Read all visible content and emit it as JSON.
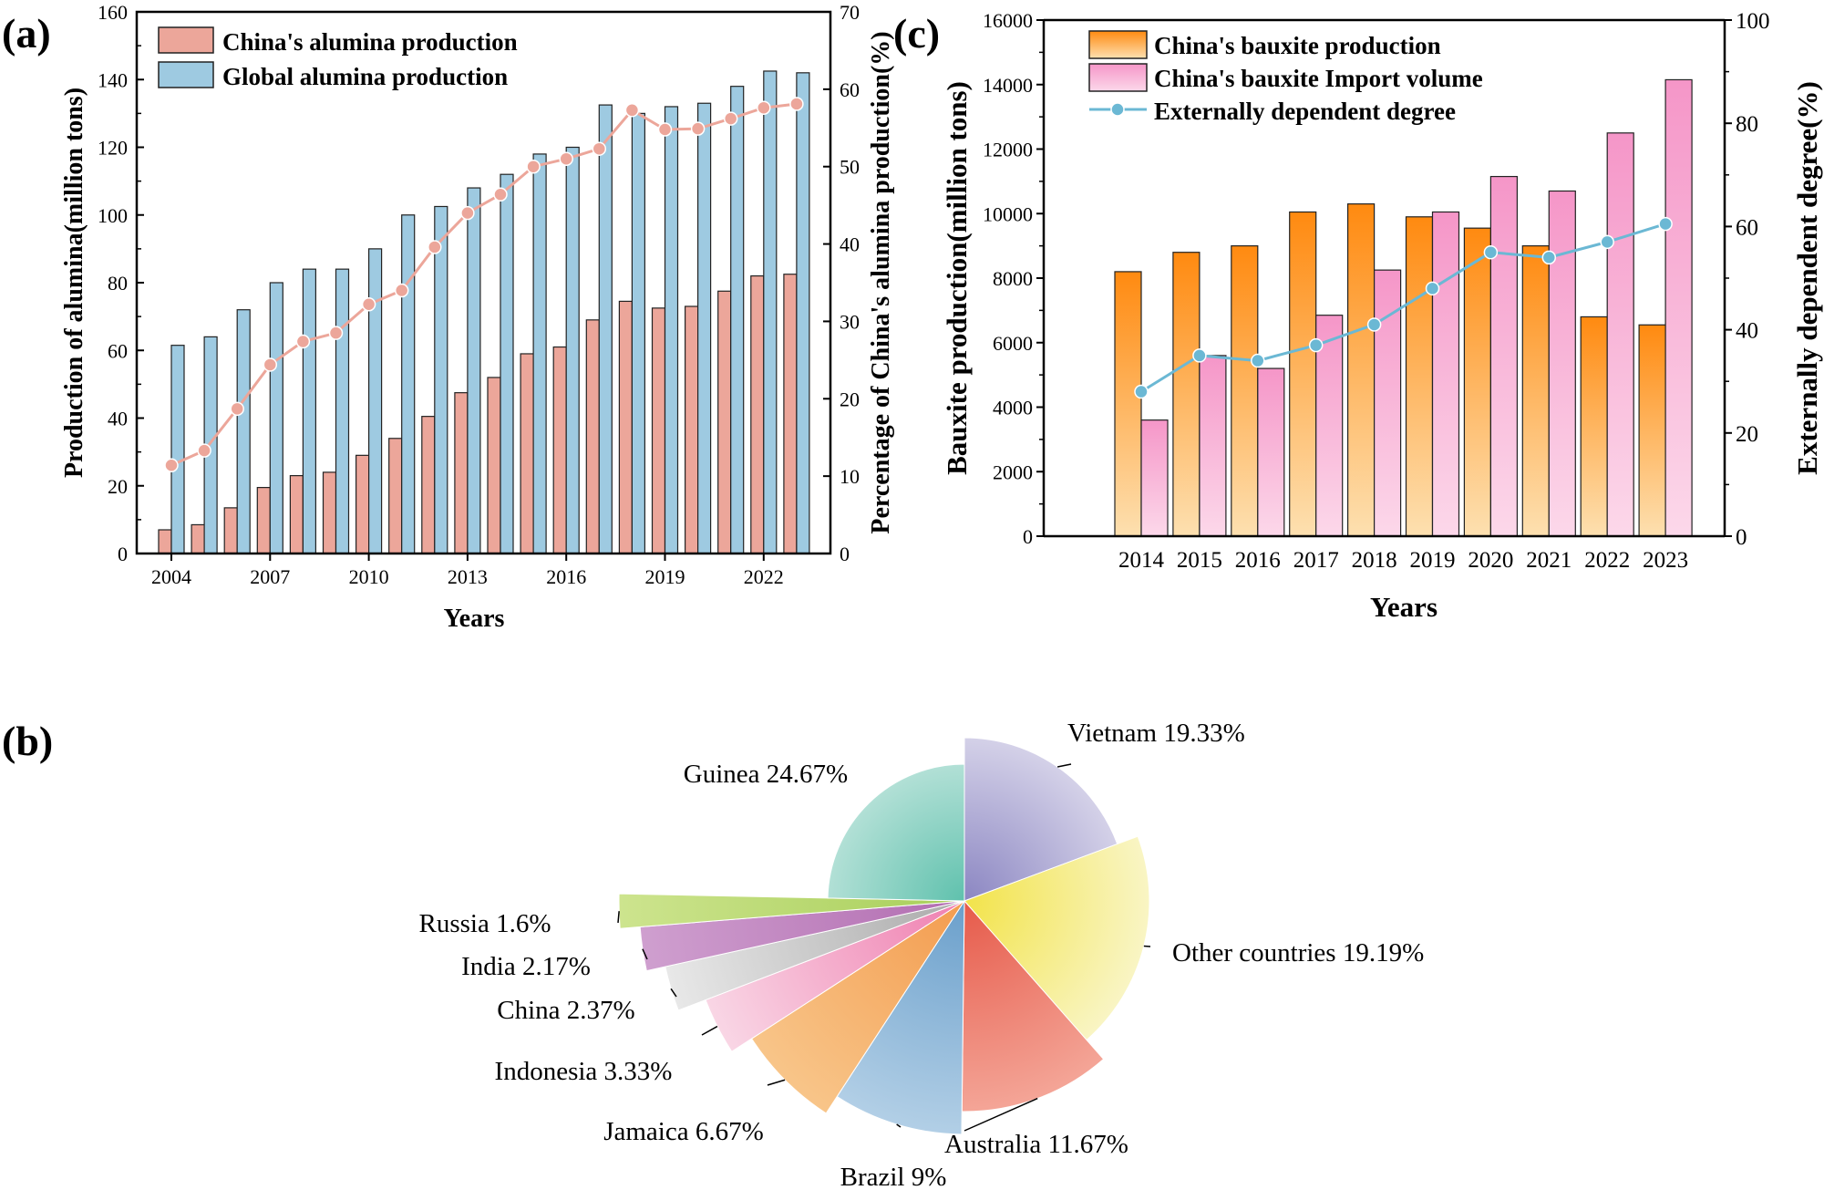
{
  "panels": {
    "a": "(a)",
    "b": "(b)",
    "c": "(c)"
  },
  "chart_data": [
    {
      "type": "bar",
      "panel": "(a)",
      "xlabel": "Years",
      "ylabel": "Production of alumina(million tons)",
      "y2label": "Percentage of China's alumina production(%)",
      "ylim": [
        0,
        160
      ],
      "y2lim": [
        0,
        70
      ],
      "yticks": [
        0,
        20,
        40,
        60,
        80,
        100,
        120,
        140,
        160
      ],
      "y2ticks": [
        0,
        10,
        20,
        30,
        40,
        50,
        60,
        70
      ],
      "xticks": [
        "2004",
        "2007",
        "2010",
        "2013",
        "2016",
        "2019",
        "2022"
      ],
      "categories": [
        2004,
        2005,
        2006,
        2007,
        2008,
        2009,
        2010,
        2011,
        2012,
        2013,
        2014,
        2015,
        2016,
        2017,
        2018,
        2019,
        2020,
        2021,
        2022,
        2023
      ],
      "legend_position": "top-left",
      "series": [
        {
          "name": "China's alumina production",
          "type": "bar",
          "color": "#eca69a",
          "values": [
            7,
            8.5,
            13.5,
            19.5,
            23,
            24,
            29,
            34,
            40.5,
            47.5,
            52,
            59,
            61,
            69,
            74.5,
            72.5,
            73,
            77.5,
            82,
            82.5
          ]
        },
        {
          "name": "Global alumina production",
          "type": "bar",
          "color": "#9ecae1",
          "values": [
            61.5,
            64,
            72,
            80,
            84,
            84,
            90,
            100,
            102.5,
            108,
            112,
            118,
            120,
            132.5,
            130,
            132,
            133,
            138,
            142.5,
            142
          ]
        },
        {
          "type": "line",
          "axis": "right",
          "color": "#eca69a",
          "values": [
            11.4,
            13.3,
            18.7,
            24.4,
            27.4,
            28.5,
            32.2,
            34,
            39.6,
            44,
            46.4,
            50,
            51,
            52.3,
            57.3,
            54.8,
            54.9,
            56.2,
            57.6,
            58.1
          ]
        }
      ]
    },
    {
      "type": "pie",
      "panel": "(b)",
      "slices": [
        {
          "label": "Vietnam 19.33%",
          "value": 19.33,
          "color": "#8b86c2",
          "light": "#d4d1e8"
        },
        {
          "label": "Other countries 19.19%",
          "value": 19.19,
          "color": "#f2e34a",
          "light": "#f9f5c4"
        },
        {
          "label": "Australia 11.67%",
          "value": 11.67,
          "color": "#e65a4a",
          "light": "#f4a597"
        },
        {
          "label": "Brazil 9%",
          "value": 9,
          "color": "#6a9fcb",
          "light": "#b2cfe6"
        },
        {
          "label": "Jamaica 6.67%",
          "value": 6.67,
          "color": "#f39c4f",
          "light": "#f8c589"
        },
        {
          "label": "Indonesia 3.33%",
          "value": 3.33,
          "color": "#ef7fb0",
          "light": "#f9d6e5"
        },
        {
          "label": "China 2.37%",
          "value": 2.37,
          "color": "#aaaaaa",
          "light": "#e8e8e8"
        },
        {
          "label": "India 2.17%",
          "value": 2.17,
          "color": "#b26db1",
          "light": "#cf9fcf"
        },
        {
          "label": "Russia 1.6%",
          "value": 1.6,
          "color": "#a8cf5a",
          "light": "#cde48e"
        },
        {
          "label": "Guinea 24.67%",
          "value": 24.67,
          "color": "#5fc1ad",
          "light": "#b2e0d6"
        }
      ]
    },
    {
      "type": "bar",
      "panel": "(c)",
      "xlabel": "Years",
      "ylabel": "Bauxite production(million tons)",
      "y2label": "Externally dependent degree(%)",
      "ylim": [
        0,
        16000
      ],
      "y2lim": [
        0,
        100
      ],
      "yticks": [
        0,
        2000,
        4000,
        6000,
        8000,
        10000,
        12000,
        14000,
        16000
      ],
      "y2ticks": [
        0,
        20,
        40,
        60,
        80,
        100
      ],
      "categories": [
        "2014",
        "2015",
        "2016",
        "2017",
        "2018",
        "2019",
        "2020",
        "2021",
        "2022",
        "2023"
      ],
      "legend_position": "top-left",
      "series": [
        {
          "name": "China's bauxite production",
          "type": "bar",
          "color": "#ff8a10",
          "light": "#fde0b0",
          "values": [
            8200,
            8800,
            9000,
            10050,
            10300,
            9900,
            9550,
            9000,
            6800,
            6550
          ]
        },
        {
          "name": "China's bauxite Import volume",
          "type": "bar",
          "color": "#f596c8",
          "light": "#fcd8ea",
          "values": [
            3600,
            5600,
            5200,
            6850,
            8250,
            10050,
            11150,
            10700,
            12500,
            14150
          ]
        },
        {
          "name": "Externally dependent degree",
          "type": "line",
          "axis": "right",
          "color": "#6bb8d4",
          "values": [
            28,
            35,
            34,
            37,
            41,
            48,
            55,
            54,
            57,
            60.5
          ]
        }
      ]
    }
  ]
}
